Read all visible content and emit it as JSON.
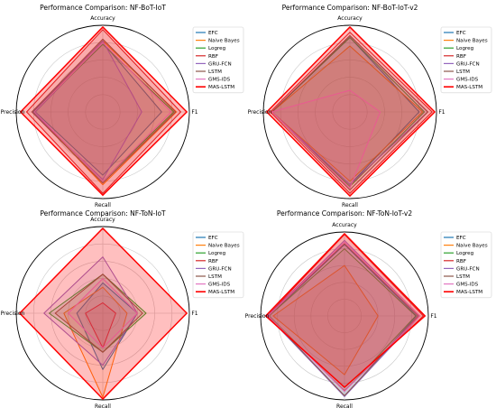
{
  "chart_data": [
    {
      "type": "radar",
      "title": "Performance Comparison: NF-BoT-IoT",
      "axes": [
        "Accuracy",
        "F1",
        "Recall",
        "Precision"
      ],
      "rlim": [
        0,
        1
      ],
      "grid": true,
      "legend": "right",
      "series": [
        {
          "name": "EFC",
          "values": [
            0.8,
            0.68,
            0.73,
            0.78
          ]
        },
        {
          "name": "Naive Bayes",
          "values": [
            0.82,
            0.85,
            0.84,
            0.8
          ]
        },
        {
          "name": "Logreg",
          "values": [
            0.78,
            0.82,
            0.8,
            0.8
          ]
        },
        {
          "name": "RBF",
          "values": [
            0.95,
            0.9,
            0.94,
            0.88
          ]
        },
        {
          "name": "GRU-FCN",
          "values": [
            0.82,
            0.45,
            0.78,
            0.81
          ]
        },
        {
          "name": "LSTM",
          "values": [
            0.84,
            0.84,
            0.82,
            0.82
          ]
        },
        {
          "name": "GMS-IDS",
          "values": [
            0.8,
            0.79,
            0.8,
            0.79
          ]
        },
        {
          "name": "MAS-LSTM",
          "values": [
            0.98,
            0.97,
            0.96,
            0.95
          ]
        }
      ]
    },
    {
      "type": "radar",
      "title": "Performance Comparison: NF-BoT-IoT-v2",
      "axes": [
        "Accuracy",
        "F1",
        "Recall",
        "Precision"
      ],
      "rlim": [
        0,
        1
      ],
      "grid": true,
      "legend": "right",
      "series": [
        {
          "name": "EFC",
          "values": [
            0.86,
            0.8,
            0.84,
            0.9
          ]
        },
        {
          "name": "Naive Bayes",
          "values": [
            0.76,
            0.84,
            0.8,
            0.9
          ]
        },
        {
          "name": "Logreg",
          "values": [
            0.86,
            0.86,
            0.86,
            0.9
          ]
        },
        {
          "name": "RBF",
          "values": [
            0.92,
            0.95,
            0.94,
            0.92
          ]
        },
        {
          "name": "GRU-FCN",
          "values": [
            0.88,
            0.9,
            0.84,
            0.9
          ]
        },
        {
          "name": "LSTM",
          "values": [
            0.88,
            0.9,
            0.9,
            0.9
          ]
        },
        {
          "name": "GMS-IDS",
          "values": [
            0.25,
            0.35,
            0.88,
            0.9
          ]
        },
        {
          "name": "MAS-LSTM",
          "values": [
            0.98,
            0.98,
            0.97,
            0.96
          ]
        }
      ]
    },
    {
      "type": "radar",
      "title": "Performance Comparison: NF-ToN-IoT",
      "axes": [
        "Accuracy",
        "F1",
        "Recall",
        "Precision"
      ],
      "rlim": [
        0,
        1
      ],
      "grid": true,
      "legend": "right",
      "series": [
        {
          "name": "EFC",
          "values": [
            0.35,
            0.4,
            0.65,
            0.3
          ]
        },
        {
          "name": "Naive Bayes",
          "values": [
            0.3,
            0.28,
            0.97,
            0.45
          ]
        },
        {
          "name": "Logreg",
          "values": [
            0.45,
            0.5,
            0.45,
            0.62
          ]
        },
        {
          "name": "RBF",
          "values": [
            0.12,
            0.15,
            0.4,
            0.2
          ]
        },
        {
          "name": "GRU-FCN",
          "values": [
            0.65,
            0.4,
            0.6,
            0.68
          ]
        },
        {
          "name": "LSTM",
          "values": [
            0.45,
            0.46,
            0.45,
            0.55
          ]
        },
        {
          "name": "GMS-IDS",
          "values": [
            0.4,
            0.4,
            0.4,
            0.4
          ]
        },
        {
          "name": "MAS-LSTM",
          "values": [
            0.98,
            0.97,
            0.99,
            0.96
          ]
        }
      ]
    },
    {
      "type": "radar",
      "title": "Performance Comparison: NF-ToN-IoT-v2",
      "axes": [
        "Accuracy",
        "F1",
        "Recall",
        "Precision"
      ],
      "rlim": [
        0,
        1
      ],
      "grid": true,
      "legend": "right",
      "series": [
        {
          "name": "EFC",
          "values": [
            0.85,
            0.86,
            0.96,
            0.9
          ]
        },
        {
          "name": "Naive Bayes",
          "values": [
            0.6,
            0.4,
            0.7,
            0.85
          ]
        },
        {
          "name": "Logreg",
          "values": [
            0.8,
            0.85,
            0.9,
            0.9
          ]
        },
        {
          "name": "RBF",
          "values": [
            0.97,
            0.94,
            0.89,
            0.92
          ]
        },
        {
          "name": "GRU-FCN",
          "values": [
            0.9,
            0.9,
            0.96,
            0.92
          ]
        },
        {
          "name": "LSTM",
          "values": [
            0.86,
            0.88,
            0.95,
            0.91
          ]
        },
        {
          "name": "GMS-IDS",
          "values": [
            0.88,
            0.9,
            0.9,
            0.91
          ]
        },
        {
          "name": "MAS-LSTM",
          "values": [
            0.98,
            0.96,
            0.85,
            0.94
          ]
        }
      ]
    }
  ],
  "colors": {
    "EFC": "#1f77b4",
    "Naive Bayes": "#ff7f0e",
    "Logreg": "#2ca02c",
    "RBF": "#d62728",
    "GRU-FCN": "#9467bd",
    "LSTM": "#8c564b",
    "GMS-IDS": "#e377c2",
    "MAS-LSTM": "#ff0000"
  }
}
